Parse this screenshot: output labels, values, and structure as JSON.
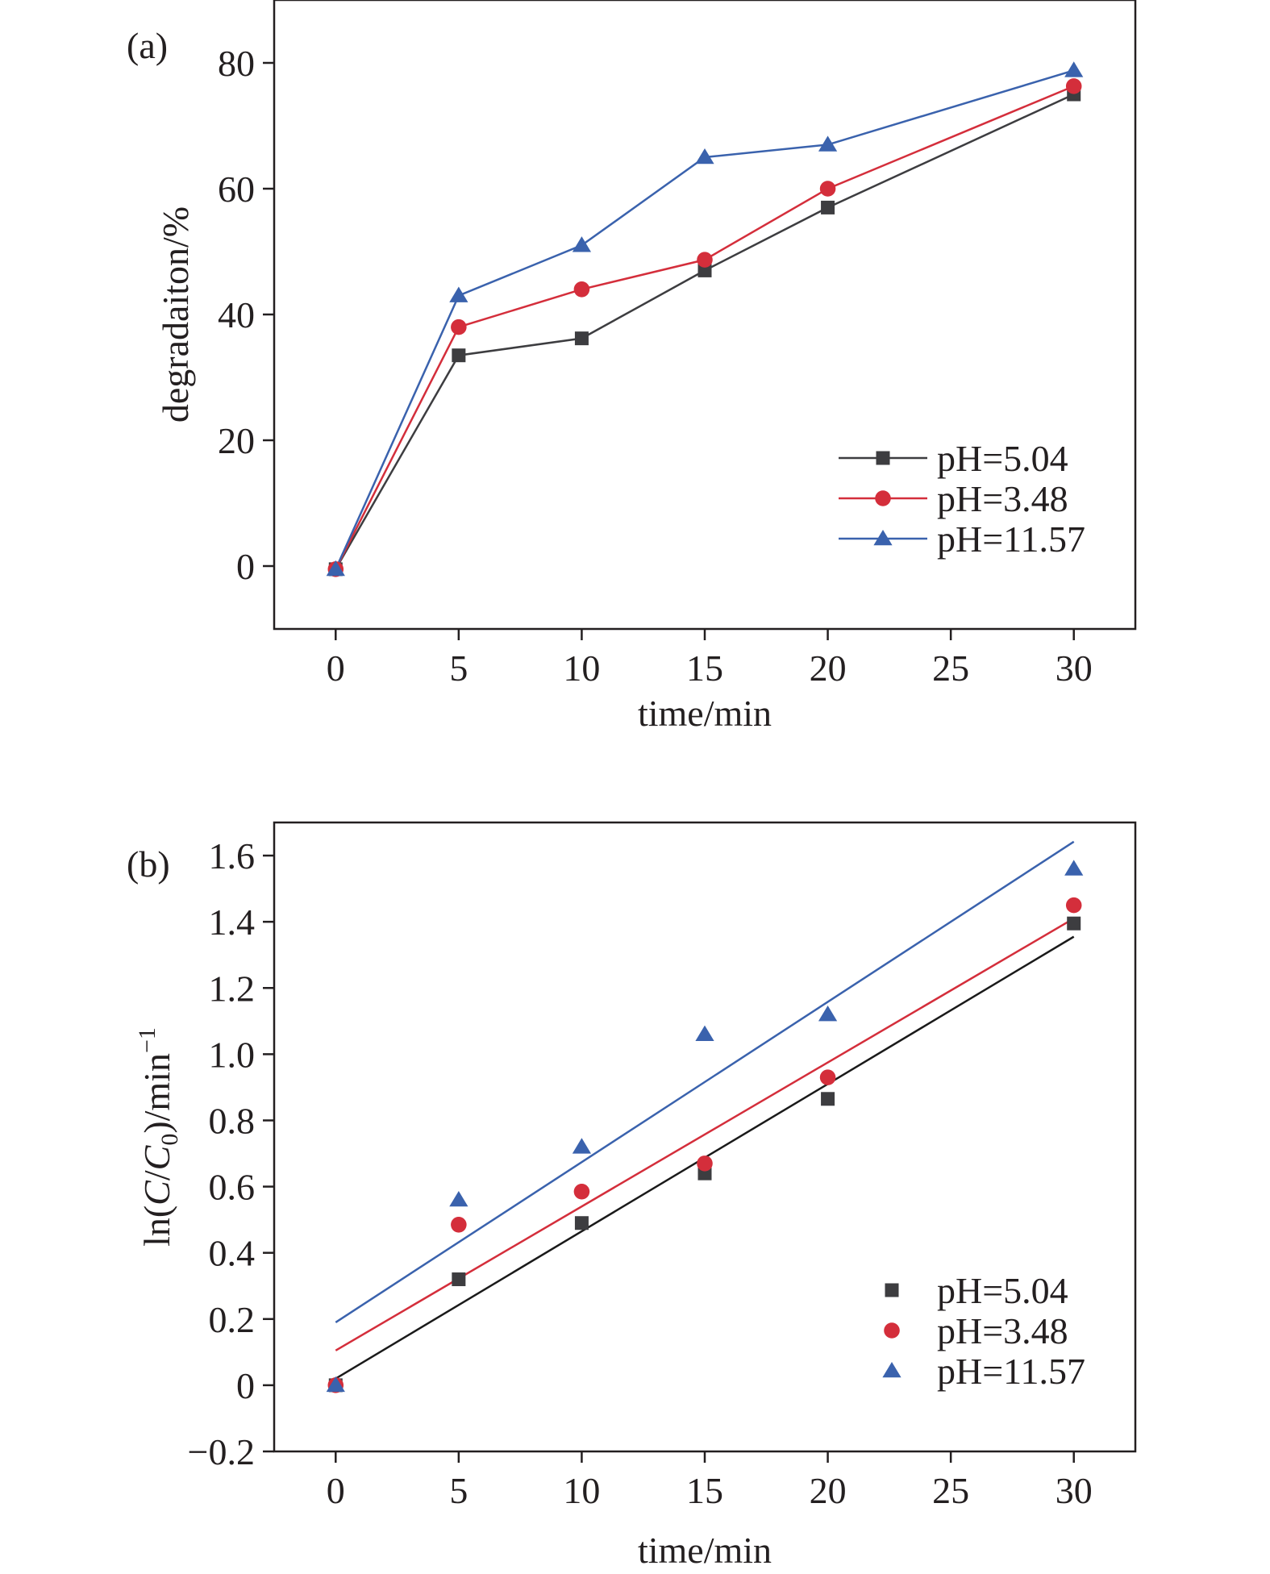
{
  "chart_data": [
    {
      "panel_label": "(a)",
      "type": "line",
      "xlabel": "time/min",
      "ylabel": "degradaiton/%",
      "xlim": [
        -2.5,
        32.5
      ],
      "ylim": [
        -10,
        90
      ],
      "xticks": [
        0,
        5,
        10,
        15,
        20,
        25,
        30
      ],
      "yticks": [
        0,
        20,
        40,
        60,
        80
      ],
      "xtick_labels": [
        "0",
        "5",
        "10",
        "15",
        "20",
        "25",
        "30"
      ],
      "ytick_labels": [
        "0",
        "20",
        "40",
        "60",
        "80"
      ],
      "grid": false,
      "legend_position": "bottom-right",
      "x": [
        0,
        5,
        10,
        15,
        20,
        30
      ],
      "series": [
        {
          "name": "pH=5.04",
          "color": "#3d3d40",
          "marker": "square",
          "values": [
            -0.5,
            33.5,
            36.2,
            47,
            57,
            75
          ]
        },
        {
          "name": "pH=3.48",
          "color": "#d42e3b",
          "marker": "circle",
          "values": [
            -0.5,
            38,
            44,
            48.7,
            60,
            76.3
          ]
        },
        {
          "name": "pH=11.57",
          "color": "#3a62ad",
          "marker": "triangle",
          "values": [
            -0.5,
            43,
            51,
            65,
            67,
            78.8
          ]
        }
      ]
    },
    {
      "panel_label": "(b)",
      "type": "scatter",
      "xlabel": "time/min",
      "ylabel_parts": [
        "ln(",
        "C",
        "/",
        "C",
        "0",
        ")/min",
        "−1"
      ],
      "xlim": [
        -2.5,
        32.5
      ],
      "ylim": [
        -0.2,
        1.7
      ],
      "xticks": [
        0,
        5,
        10,
        15,
        20,
        25,
        30
      ],
      "yticks": [
        -0.2,
        0,
        0.2,
        0.4,
        0.6,
        0.8,
        1.0,
        1.2,
        1.4,
        1.6
      ],
      "xtick_labels": [
        "0",
        "5",
        "10",
        "15",
        "20",
        "25",
        "30"
      ],
      "ytick_labels": [
        "−0.2",
        "0",
        "0.2",
        "0.4",
        "0.6",
        "0.8",
        "1.0",
        "1.2",
        "1.4",
        "1.6"
      ],
      "grid": false,
      "legend_position": "bottom-right",
      "x": [
        0,
        5,
        10,
        15,
        20,
        30
      ],
      "series": [
        {
          "name": "pH=5.04",
          "color": "#3d3d40",
          "marker": "square",
          "values": [
            0,
            0.32,
            0.49,
            0.64,
            0.865,
            1.395
          ],
          "fit": {
            "intercept": 0.02,
            "slope": 0.0445,
            "color": "#1a1a1a"
          }
        },
        {
          "name": "pH=3.48",
          "color": "#d42e3b",
          "marker": "circle",
          "values": [
            0,
            0.485,
            0.585,
            0.67,
            0.93,
            1.45
          ],
          "fit": {
            "intercept": 0.105,
            "slope": 0.0435,
            "color": "#d42e3b"
          }
        },
        {
          "name": "pH=11.57",
          "color": "#3a62ad",
          "marker": "triangle",
          "values": [
            0,
            0.56,
            0.72,
            1.06,
            1.12,
            1.56
          ],
          "fit": {
            "intercept": 0.19,
            "slope": 0.0484,
            "color": "#3a62ad"
          }
        }
      ]
    }
  ]
}
